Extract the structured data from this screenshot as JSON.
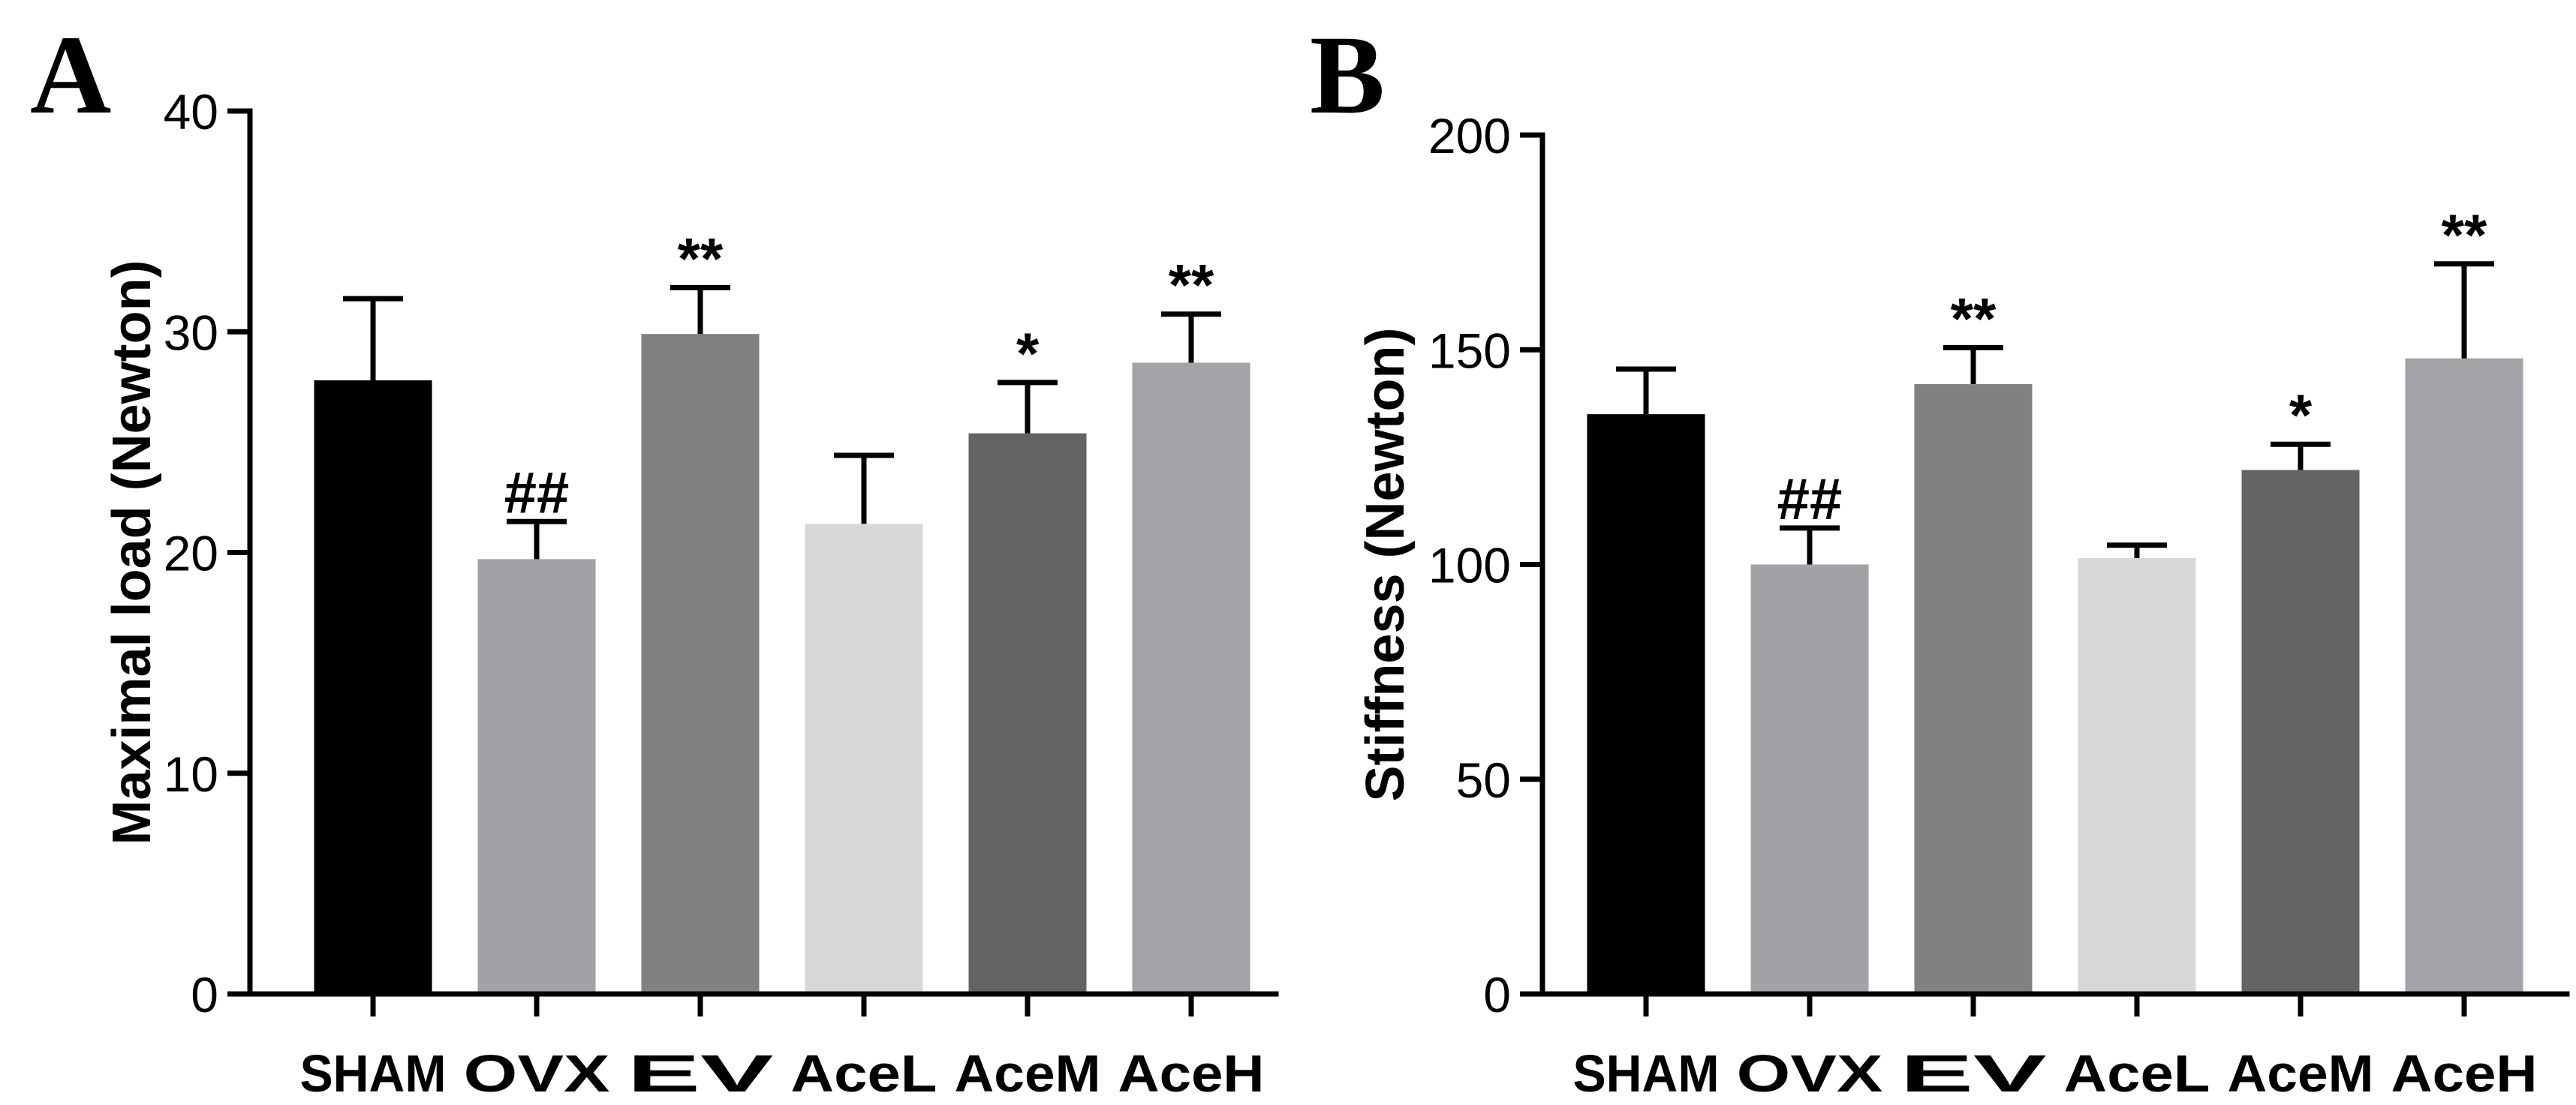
{
  "chart_data": [
    {
      "type": "bar",
      "panel_label": "A",
      "title": "",
      "xlabel": "",
      "ylabel": "Maximal load (Newton)",
      "categories": [
        "SHAM",
        "OVX",
        "EV",
        "AceL",
        "AceM",
        "AceH"
      ],
      "values": [
        27.8,
        19.7,
        29.9,
        21.3,
        25.4,
        28.6
      ],
      "error_upper": [
        3.7,
        1.7,
        2.1,
        3.1,
        2.3,
        2.2
      ],
      "annotations": [
        "",
        "##",
        "**",
        "",
        "*",
        "**"
      ],
      "bar_colors": [
        "#000000",
        "#a1a1a6",
        "#818181",
        "#d8d8d8",
        "#646464",
        "#a2a2a7"
      ],
      "ylim": [
        0,
        40
      ],
      "yticks": [
        0,
        10,
        20,
        30,
        40
      ],
      "ytick_labels": [
        "0",
        "10",
        "20",
        "30",
        "40"
      ],
      "grid": false
    },
    {
      "type": "bar",
      "panel_label": "B",
      "title": "",
      "xlabel": "",
      "ylabel": "Stiffness (Newton)",
      "categories": [
        "SHAM",
        "OVX",
        "EV",
        "AceL",
        "AceM",
        "AceH"
      ],
      "values": [
        135,
        100,
        142,
        101.5,
        122,
        148
      ],
      "error_upper": [
        10.5,
        8.5,
        8.5,
        3,
        6,
        22
      ],
      "annotations": [
        "",
        "##",
        "**",
        "",
        "*",
        "**"
      ],
      "bar_colors": [
        "#000000",
        "#a1a1a6",
        "#818181",
        "#d8d8d8",
        "#646464",
        "#a2a2a7"
      ],
      "ylim": [
        0,
        200
      ],
      "yticks": [
        0,
        50,
        100,
        150,
        200
      ],
      "ytick_labels": [
        "0",
        "50",
        "100",
        "150",
        "200"
      ],
      "grid": false
    }
  ]
}
